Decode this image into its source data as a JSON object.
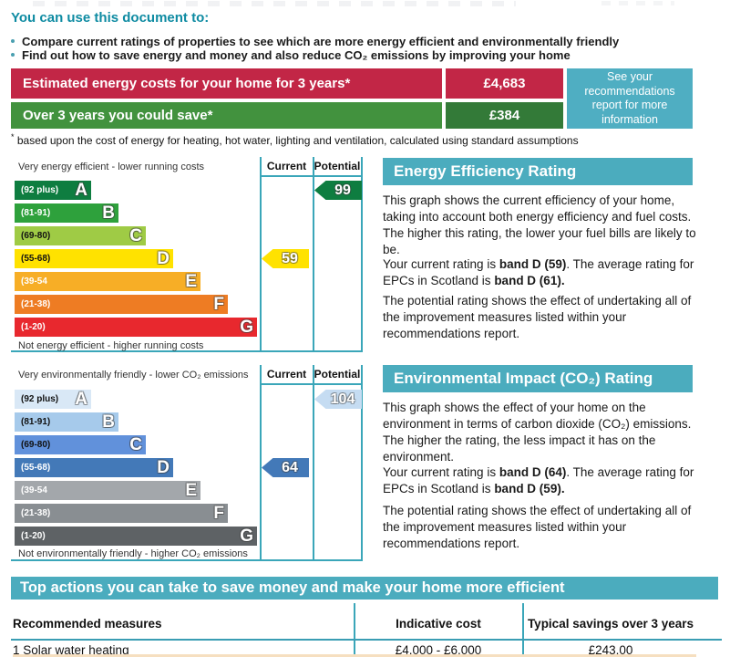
{
  "colors": {
    "teal_banner": "#4BACBE",
    "teal_note": "#4FAEC2",
    "teal_border": "#3AA6B9",
    "heading_teal": "#0E8BA2",
    "cost_red": "#C22646",
    "cost_green_label": "#42923E",
    "cost_green_value": "#337A38",
    "energy_arrow_current": "#FFE200",
    "energy_arrow_potential": "#0E7D40",
    "env_arrow_current": "#4379B8",
    "env_arrow_potential": "#C5DCF2"
  },
  "intro": {
    "heading": "You can use this document to:",
    "bullets": [
      "Compare current ratings of properties to see which are more energy efficient and environmentally friendly",
      "Find out how to save energy and money and also reduce CO₂ emissions by improving your home"
    ]
  },
  "cost_summary": {
    "rows": [
      {
        "label": "Estimated energy costs for your home for 3 years*",
        "value": "£4,683"
      },
      {
        "label": "Over 3 years you could save*",
        "value": "£384"
      }
    ],
    "side_note": "See your recommendations report for more information",
    "footnote_marker": "*",
    "footnote": " based upon the cost of energy for heating, hot water, lighting and ventilation, calculated using standard assumptions"
  },
  "energy_chart": {
    "columns": {
      "current": "Current",
      "potential": "Potential"
    },
    "top_label": "Very energy efficient - lower running costs",
    "bottom_label": "Not energy efficient - higher running costs",
    "bands": [
      {
        "range": "(92 plus)",
        "letter": "A",
        "color": "#0E7D40"
      },
      {
        "range": "(81-91)",
        "letter": "B",
        "color": "#2EA13C"
      },
      {
        "range": "(69-80)",
        "letter": "C",
        "color": "#9FCB45"
      },
      {
        "range": "(55-68)",
        "letter": "D",
        "color": "#FFE200"
      },
      {
        "range": "(39-54",
        "letter": "E",
        "color": "#F7AE26"
      },
      {
        "range": "(21-38)",
        "letter": "F",
        "color": "#EE7C23"
      },
      {
        "range": "(1-20)",
        "letter": "G",
        "color": "#E8282E"
      }
    ],
    "current_value": "59",
    "potential_value": "99"
  },
  "environmental_chart": {
    "columns": {
      "current": "Current",
      "potential": "Potential"
    },
    "top_label": "Very environmentally friendly - lower CO₂ emissions",
    "bottom_label": "Not environmentally friendly - higher CO₂ emissions",
    "bands": [
      {
        "range": "(92 plus)",
        "letter": "A",
        "color": "#D9E8F6"
      },
      {
        "range": "(81-91)",
        "letter": "B",
        "color": "#A6CAEB"
      },
      {
        "range": "(69-80)",
        "letter": "C",
        "color": "#6191DB"
      },
      {
        "range": "(55-68)",
        "letter": "D",
        "color": "#4379B8"
      },
      {
        "range": "(39-54",
        "letter": "E",
        "color": "#A3A7AB"
      },
      {
        "range": "(21-38)",
        "letter": "F",
        "color": "#898E92"
      },
      {
        "range": "(1-20)",
        "letter": "G",
        "color": "#5E6265"
      }
    ],
    "current_value": "64",
    "potential_value": "104"
  },
  "energy_panel": {
    "title": "Energy Efficiency Rating",
    "p1": "This graph shows the current efficiency of your home, taking into account both energy efficiency and fuel costs. The higher this rating, the lower your fuel bills are likely to be.",
    "p2_parts": [
      "Your current rating is ",
      "band D (59)",
      ". The average rating for EPCs in Scotland is ",
      "band D (61)."
    ],
    "p3": "The potential rating shows the effect of undertaking all of the improvement measures listed within your recommendations report."
  },
  "environmental_panel": {
    "title": "Environmental Impact (CO₂) Rating",
    "p1": "This graph shows the effect of your home on the environment in terms of carbon dioxide (CO₂) emissions. The higher the rating, the less impact it has on the environment.",
    "p2_parts": [
      "Your current rating is ",
      "band D (64)",
      ". The average rating for EPCs in Scotland is ",
      "band D (59)."
    ],
    "p3": "The potential rating shows the effect of undertaking all of the improvement measures listed within your recommendations report."
  },
  "actions": {
    "banner": "Top actions you can take to save money and make your home more efficient",
    "headers": [
      "Recommended measures",
      "Indicative cost",
      "Typical savings over 3 years"
    ],
    "rows": [
      {
        "measure": "1 Solar water heating",
        "cost": "£4,000 - £6,000",
        "savings": "£243.00"
      }
    ]
  },
  "chart_data": [
    {
      "type": "bar",
      "title": "Energy Efficiency Rating",
      "categories": [
        "A (92 plus)",
        "B (81-91)",
        "C (69-80)",
        "D (55-68)",
        "E (39-54)",
        "F (21-38)",
        "G (1-20)"
      ],
      "series": [
        {
          "name": "Current",
          "value": 59,
          "band": "D"
        },
        {
          "name": "Potential",
          "value": 99,
          "band": "A"
        }
      ],
      "annotations": [
        "Very energy efficient - lower running costs",
        "Not energy efficient - higher running costs"
      ],
      "legend_position": "top-right-columns"
    },
    {
      "type": "bar",
      "title": "Environmental Impact (CO₂) Rating",
      "categories": [
        "A (92 plus)",
        "B (81-91)",
        "C (69-80)",
        "D (55-68)",
        "E (39-54)",
        "F (21-38)",
        "G (1-20)"
      ],
      "series": [
        {
          "name": "Current",
          "value": 64,
          "band": "D"
        },
        {
          "name": "Potential",
          "value": 104,
          "band": "A"
        }
      ],
      "annotations": [
        "Very environmentally friendly - lower CO₂ emissions",
        "Not environmentally friendly - higher CO₂ emissions"
      ],
      "legend_position": "top-right-columns"
    }
  ]
}
